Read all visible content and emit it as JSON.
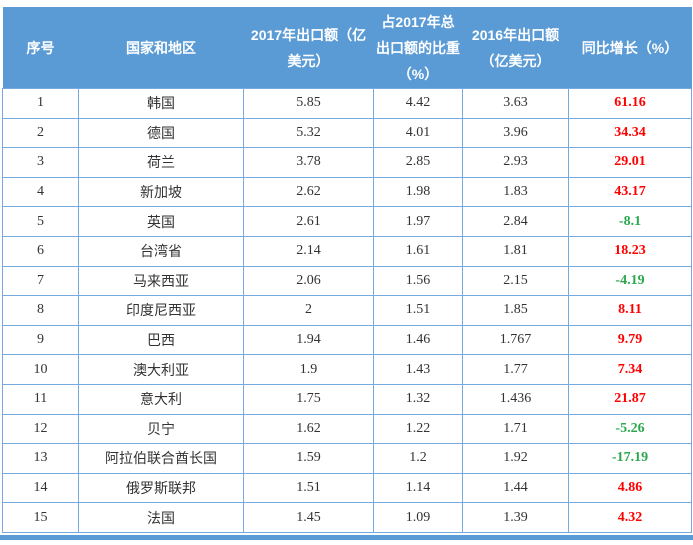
{
  "colors": {
    "header_bg": "#5b9bd5",
    "cell_border": "#74aade",
    "positive_growth": "#ff0000",
    "negative_growth": "#2ba84e"
  },
  "table": {
    "columns": [
      {
        "label": "序号"
      },
      {
        "label": "国家和地区"
      },
      {
        "label": "2017年出口额（亿美元）"
      },
      {
        "label": "占2017年总出口额的比重（%）"
      },
      {
        "label": "2016年出口额（亿美元）"
      },
      {
        "label": "同比增长（%）"
      }
    ],
    "rows": [
      {
        "no": "1",
        "country": "韩国",
        "export2017": "5.85",
        "share": "4.42",
        "export2016": "3.63",
        "growth": "61.16"
      },
      {
        "no": "2",
        "country": "德国",
        "export2017": "5.32",
        "share": "4.01",
        "export2016": "3.96",
        "growth": "34.34"
      },
      {
        "no": "3",
        "country": "荷兰",
        "export2017": "3.78",
        "share": "2.85",
        "export2016": "2.93",
        "growth": "29.01"
      },
      {
        "no": "4",
        "country": "新加坡",
        "export2017": "2.62",
        "share": "1.98",
        "export2016": "1.83",
        "growth": "43.17"
      },
      {
        "no": "5",
        "country": "英国",
        "export2017": "2.61",
        "share": "1.97",
        "export2016": "2.84",
        "growth": "-8.1"
      },
      {
        "no": "6",
        "country": "台湾省",
        "export2017": "2.14",
        "share": "1.61",
        "export2016": "1.81",
        "growth": "18.23"
      },
      {
        "no": "7",
        "country": "马来西亚",
        "export2017": "2.06",
        "share": "1.56",
        "export2016": "2.15",
        "growth": "-4.19"
      },
      {
        "no": "8",
        "country": "印度尼西亚",
        "export2017": "2",
        "share": "1.51",
        "export2016": "1.85",
        "growth": "8.11"
      },
      {
        "no": "9",
        "country": "巴西",
        "export2017": "1.94",
        "share": "1.46",
        "export2016": "1.767",
        "growth": "9.79"
      },
      {
        "no": "10",
        "country": "澳大利亚",
        "export2017": "1.9",
        "share": "1.43",
        "export2016": "1.77",
        "growth": "7.34"
      },
      {
        "no": "11",
        "country": "意大利",
        "export2017": "1.75",
        "share": "1.32",
        "export2016": "1.436",
        "growth": "21.87"
      },
      {
        "no": "12",
        "country": "贝宁",
        "export2017": "1.62",
        "share": "1.22",
        "export2016": "1.71",
        "growth": "-5.26"
      },
      {
        "no": "13",
        "country": "阿拉伯联合酋长国",
        "export2017": "1.59",
        "share": "1.2",
        "export2016": "1.92",
        "growth": "-17.19"
      },
      {
        "no": "14",
        "country": "俄罗斯联邦",
        "export2017": "1.51",
        "share": "1.14",
        "export2016": "1.44",
        "growth": "4.86"
      },
      {
        "no": "15",
        "country": "法国",
        "export2017": "1.45",
        "share": "1.09",
        "export2016": "1.39",
        "growth": "4.32"
      }
    ]
  }
}
